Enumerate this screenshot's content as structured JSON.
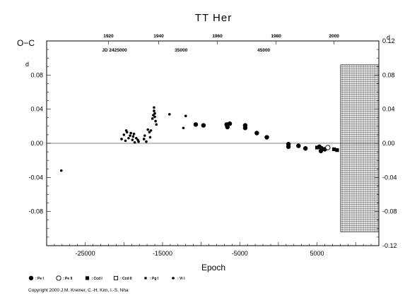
{
  "chart_data": {
    "type": "scatter",
    "title": "TT Her",
    "xlabel": "Epoch",
    "ylabel_left": "O−C",
    "ylabel_right_prefix": "d",
    "xlim": [
      -30000,
      13000
    ],
    "ylim": [
      -0.12,
      0.12
    ],
    "x_ticks": [
      -25000,
      -15000,
      -5000,
      5000
    ],
    "x_tick_labels": [
      "-25000",
      "-15000",
      "-5000",
      "5000"
    ],
    "y_ticks": [
      -0.08,
      -0.04,
      0.0,
      0.04,
      0.08
    ],
    "y_tick_labels": [
      "-0.08",
      "-0.04",
      "0.00",
      "0.04",
      "0.08"
    ],
    "y_ticks_right": [
      -0.12,
      -0.08,
      -0.04,
      0.0,
      0.04,
      0.08,
      0.12
    ],
    "y_tick_labels_right": [
      "-0.12",
      "-0.08",
      "-0.04",
      "0.00",
      "0.04",
      "0.08",
      "0.12"
    ],
    "top_axis": {
      "years": [
        "1920",
        "1940",
        "1960",
        "1980",
        "2000"
      ],
      "year_epochs": [
        -22000,
        -15500,
        -7900,
        -300,
        7200
      ],
      "jd_label": "JD 2425000",
      "jd_marks": [
        "35000",
        "45000"
      ],
      "jd_epochs": [
        -12600,
        -1900
      ]
    },
    "zero_line": 0.0,
    "future_region_start": 8100,
    "series": [
      {
        "name": "Pe I",
        "marker": "filled-circle-large",
        "points": [
          [
            -10700,
            0.022
          ],
          [
            -9700,
            0.021
          ],
          [
            -6700,
            0.022
          ],
          [
            -6300,
            0.023
          ],
          [
            -6600,
            0.019
          ],
          [
            -4300,
            0.021
          ],
          [
            -4300,
            0.018
          ],
          [
            -2800,
            0.012
          ],
          [
            -1500,
            0.007
          ],
          [
            1300,
            -0.001
          ],
          [
            1300,
            -0.004
          ],
          [
            2600,
            -0.003
          ],
          [
            3500,
            -0.006
          ],
          [
            5300,
            -0.004
          ],
          [
            5600,
            -0.006
          ],
          [
            5500,
            -0.009
          ],
          [
            6000,
            -0.007
          ]
        ]
      },
      {
        "name": "Pe II",
        "marker": "open-circle-large",
        "points": [
          [
            6400,
            -0.005
          ]
        ]
      },
      {
        "name": "Ccd I",
        "marker": "filled-square",
        "points": [
          [
            5000,
            -0.005
          ],
          [
            7200,
            -0.007
          ],
          [
            7600,
            -0.008
          ]
        ]
      },
      {
        "name": "Ccd II",
        "marker": "open-square",
        "points": []
      },
      {
        "name": "Pg I",
        "marker": "small-square",
        "points": []
      },
      {
        "name": "Vi I",
        "marker": "small-dot",
        "points": [
          [
            -28100,
            -0.032
          ],
          [
            -20300,
            0.005
          ],
          [
            -20000,
            0.01
          ],
          [
            -19700,
            0.015
          ],
          [
            -19600,
            0.013
          ],
          [
            -19800,
            0.003
          ],
          [
            -19400,
            0.006
          ],
          [
            -19200,
            0.009
          ],
          [
            -19100,
            0.012
          ],
          [
            -18900,
            0.004
          ],
          [
            -18800,
            0.008
          ],
          [
            -18700,
            0.011
          ],
          [
            -18600,
            0.001
          ],
          [
            -18400,
            0.006
          ],
          [
            -18200,
            0.004
          ],
          [
            -18100,
            0.002
          ],
          [
            -17400,
            0.005
          ],
          [
            -17300,
            0.009
          ],
          [
            -17100,
            0.002
          ],
          [
            -16900,
            0.016
          ],
          [
            -16700,
            0.013
          ],
          [
            -16500,
            0.015
          ],
          [
            -16600,
            0.007
          ],
          [
            -16300,
            0.029
          ],
          [
            -16200,
            0.033
          ],
          [
            -16100,
            0.038
          ],
          [
            -16100,
            0.042
          ],
          [
            -16000,
            0.035
          ],
          [
            -16000,
            0.031
          ],
          [
            -15900,
            0.026
          ],
          [
            -15800,
            0.022
          ],
          [
            -14100,
            0.034
          ],
          [
            -12000,
            0.032
          ],
          [
            -12300,
            0.018
          ]
        ]
      }
    ],
    "legend": {
      "position": "bottom-left",
      "entries": [
        ": Pe I",
        ": Pe II",
        ": Ccd I",
        ": Ccd II",
        ": Pg I",
        ": Vi I"
      ]
    }
  },
  "footer": {
    "copyright": "Copyright 2000 J.M. Kreiner, C.-H. Kim, I.-S. Nha"
  }
}
